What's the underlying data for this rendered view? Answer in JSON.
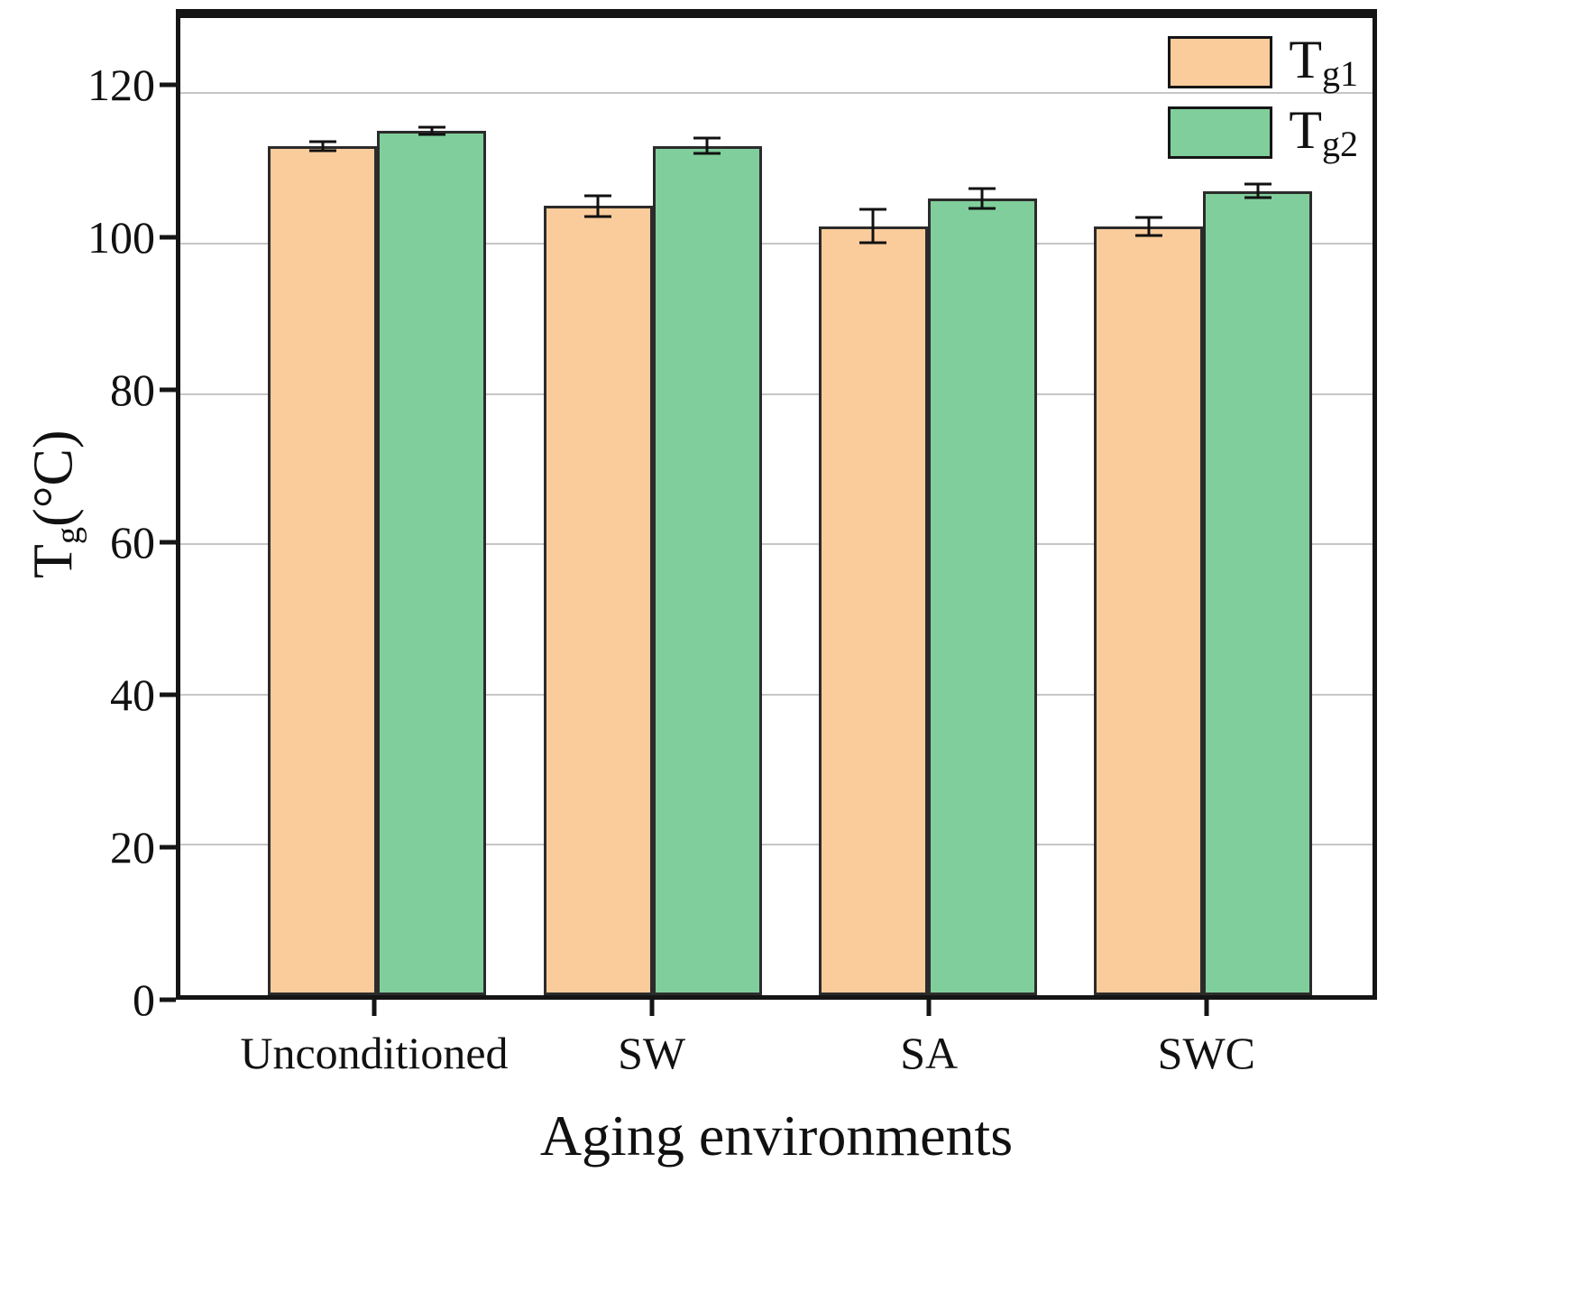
{
  "chart_data": {
    "type": "bar",
    "xlabel": "Aging environments",
    "ylabel_main": "T",
    "ylabel_sub": "g",
    "ylabel_rest": "(°C)",
    "categories": [
      "Unconditioned",
      "SW",
      "SA",
      "SWC"
    ],
    "series": [
      {
        "name": "Tg1",
        "label_main": "T",
        "label_sub": "g1",
        "color": "#FACC9B",
        "values": [
          113,
          105,
          102.3,
          102.3
        ],
        "errors": [
          0.6,
          1.4,
          2.2,
          1.2
        ]
      },
      {
        "name": "Tg2",
        "label_main": "T",
        "label_sub": "g2",
        "color": "#80CE9B",
        "values": [
          115,
          113,
          106,
          107
        ],
        "errors": [
          0.5,
          1.0,
          1.3,
          0.9
        ]
      }
    ],
    "yticks": [
      0,
      20,
      40,
      60,
      80,
      100,
      120
    ],
    "ylim": [
      0,
      130
    ],
    "grid": true,
    "legend_position": "top-right",
    "edge_color": "#2b2b2b",
    "grid_color": "#c6c6c6",
    "axis_color": "#151515"
  }
}
